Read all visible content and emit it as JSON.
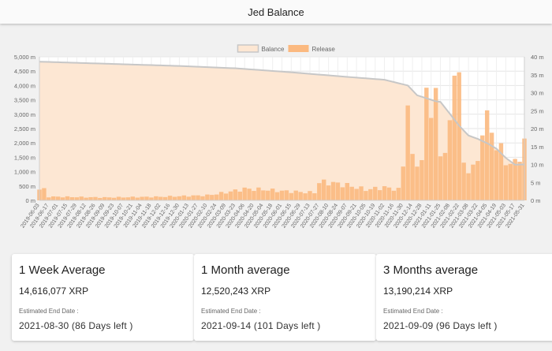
{
  "app": {
    "title": "Jed Balance"
  },
  "chart_data": {
    "type": "bar-line",
    "legend": [
      "Balance",
      "Release"
    ],
    "legend_position": "top",
    "y_left": {
      "ticks": [
        "0 m",
        "500 m",
        "1,000 m",
        "1,500 m",
        "2,000 m",
        "2,500 m",
        "3,000 m",
        "3,500 m",
        "4,000 m",
        "4,500 m",
        "5,000 m"
      ],
      "min": 0,
      "max": 5000,
      "unit": "m"
    },
    "y_right": {
      "ticks": [
        "0 m",
        "5 m",
        "10 m",
        "15 m",
        "20 m",
        "25 m",
        "30 m",
        "35 m",
        "40 m"
      ],
      "min": 0,
      "max": 40,
      "unit": "m"
    },
    "x_labels": [
      "2019-06-03",
      "2019-06-17",
      "2019-07-01",
      "2019-07-15",
      "2019-07-29",
      "2019-08-12",
      "2019-08-26",
      "2019-09-09",
      "2019-09-23",
      "2019-10-07",
      "2019-10-21",
      "2019-11-04",
      "2019-11-18",
      "2019-12-02",
      "2019-12-16",
      "2019-12-30",
      "2020-01-13",
      "2020-01-27",
      "2020-02-10",
      "2020-02-24",
      "2020-03-09",
      "2020-03-23",
      "2020-04-06",
      "2020-04-20",
      "2020-05-04",
      "2020-05-18",
      "2020-06-01",
      "2020-06-15",
      "2020-06-29",
      "2020-07-13",
      "2020-07-27",
      "2020-08-10",
      "2020-08-24",
      "2020-09-07",
      "2020-09-21",
      "2020-10-05",
      "2020-10-19",
      "2020-11-02",
      "2020-11-16",
      "2020-11-30",
      "2020-12-14",
      "2020-12-28",
      "2021-01-11",
      "2021-01-25",
      "2021-02-08",
      "2021-02-22",
      "2021-03-08",
      "2021-03-22",
      "2021-04-05",
      "2021-04-19",
      "2021-05-03",
      "2021-05-17",
      "2021-05-31"
    ],
    "balance_series": [
      {
        "date": "2019-06-03",
        "value": 4830
      },
      {
        "date": "2019-09-09",
        "value": 4760
      },
      {
        "date": "2019-12-30",
        "value": 4680
      },
      {
        "date": "2020-03-23",
        "value": 4600
      },
      {
        "date": "2020-06-15",
        "value": 4460
      },
      {
        "date": "2020-09-07",
        "value": 4300
      },
      {
        "date": "2020-11-02",
        "value": 4200
      },
      {
        "date": "2020-12-07",
        "value": 4000
      },
      {
        "date": "2020-12-21",
        "value": 3660
      },
      {
        "date": "2021-01-18",
        "value": 3450
      },
      {
        "date": "2021-01-25",
        "value": 3430
      },
      {
        "date": "2021-02-08",
        "value": 3020
      },
      {
        "date": "2021-02-22",
        "value": 2600
      },
      {
        "date": "2021-03-08",
        "value": 2260
      },
      {
        "date": "2021-03-22",
        "value": 2140
      },
      {
        "date": "2021-04-05",
        "value": 1990
      },
      {
        "date": "2021-04-19",
        "value": 1800
      },
      {
        "date": "2021-05-03",
        "value": 1480
      },
      {
        "date": "2021-05-17",
        "value": 1240
      },
      {
        "date": "2021-05-31",
        "value": 1250
      }
    ],
    "release_series": [
      {
        "date": "2019-06-03",
        "value": 3.0
      },
      {
        "date": "2019-07-01",
        "value": 1.0
      },
      {
        "date": "2019-09-09",
        "value": 0.8
      },
      {
        "date": "2019-12-02",
        "value": 1.0
      },
      {
        "date": "2020-02-10",
        "value": 1.4
      },
      {
        "date": "2020-03-09",
        "value": 2.2
      },
      {
        "date": "2020-04-06",
        "value": 3.2
      },
      {
        "date": "2020-05-04",
        "value": 3.0
      },
      {
        "date": "2020-06-01",
        "value": 2.6
      },
      {
        "date": "2020-07-13",
        "value": 2.2
      },
      {
        "date": "2020-08-10",
        "value": 5.0
      },
      {
        "date": "2020-09-07",
        "value": 4.2
      },
      {
        "date": "2020-10-05",
        "value": 3.0
      },
      {
        "date": "2020-11-02",
        "value": 3.6
      },
      {
        "date": "2020-11-23",
        "value": 3.0
      },
      {
        "date": "2020-11-30",
        "value": 10.0
      },
      {
        "date": "2020-12-07",
        "value": 29.0
      },
      {
        "date": "2020-12-14",
        "value": 11.0
      },
      {
        "date": "2021-01-18",
        "value": 28.0
      },
      {
        "date": "2021-01-25",
        "value": 12.0
      },
      {
        "date": "2021-02-08",
        "value": 19.0
      },
      {
        "date": "2021-02-15",
        "value": 38.0
      },
      {
        "date": "2021-03-08",
        "value": 9.0
      },
      {
        "date": "2021-03-22",
        "value": 10.0
      },
      {
        "date": "2021-04-05",
        "value": 22.0
      },
      {
        "date": "2021-04-19",
        "value": 16.0
      },
      {
        "date": "2021-05-03",
        "value": 11.0
      },
      {
        "date": "2021-05-17",
        "value": 10.0
      },
      {
        "date": "2021-05-31",
        "value": 16.0
      }
    ],
    "colors": {
      "balance_line": "#c7c7c7",
      "balance_fill": "#fde7d3",
      "release_bar": "#fbb980",
      "grid": "#e6e6e6"
    }
  },
  "cards": [
    {
      "title": "1 Week Average",
      "amount": "14,616,077 XRP",
      "end_label": "Estimated End Date :",
      "end_value": "2021-08-30 (86 Days left )"
    },
    {
      "title": "1 Month average",
      "amount": "12,520,243 XRP",
      "end_label": "Estimated End Date :",
      "end_value": "2021-09-14 (101 Days left )"
    },
    {
      "title": "3 Months average",
      "amount": "13,190,214 XRP",
      "end_label": "Estimated End Date :",
      "end_value": "2021-09-09 (96 Days left )"
    }
  ]
}
